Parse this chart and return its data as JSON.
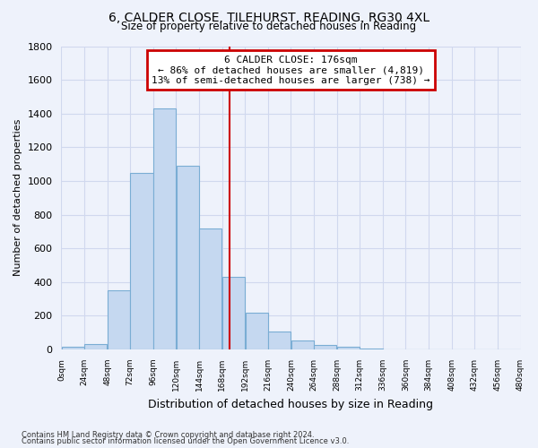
{
  "title": "6, CALDER CLOSE, TILEHURST, READING, RG30 4XL",
  "subtitle": "Size of property relative to detached houses in Reading",
  "xlabel": "Distribution of detached houses by size in Reading",
  "ylabel": "Number of detached properties",
  "bar_color": "#c5d8f0",
  "bar_edge_color": "#7aadd4",
  "bin_edges": [
    0,
    24,
    48,
    72,
    96,
    120,
    144,
    168,
    192,
    216,
    240,
    264,
    288,
    312,
    336,
    360,
    384,
    408,
    432,
    456,
    480
  ],
  "bar_heights": [
    15,
    30,
    350,
    1050,
    1430,
    1090,
    720,
    430,
    220,
    105,
    55,
    25,
    15,
    5,
    2,
    1,
    0,
    0,
    0,
    0
  ],
  "property_line_x": 176,
  "property_line_color": "#cc0000",
  "annotation_line1": "6 CALDER CLOSE: 176sqm",
  "annotation_line2": "← 86% of detached houses are smaller (4,819)",
  "annotation_line3": "13% of semi-detached houses are larger (738) →",
  "annotation_box_color": "#ffffff",
  "annotation_box_edge_color": "#cc0000",
  "ylim": [
    0,
    1800
  ],
  "xlim": [
    0,
    480
  ],
  "tick_labels": [
    "0sqm",
    "24sqm",
    "48sqm",
    "72sqm",
    "96sqm",
    "120sqm",
    "144sqm",
    "168sqm",
    "192sqm",
    "216sqm",
    "240sqm",
    "264sqm",
    "288sqm",
    "312sqm",
    "336sqm",
    "360sqm",
    "384sqm",
    "408sqm",
    "432sqm",
    "456sqm",
    "480sqm"
  ],
  "footnote1": "Contains HM Land Registry data © Crown copyright and database right 2024.",
  "footnote2": "Contains public sector information licensed under the Open Government Licence v3.0.",
  "background_color": "#eef2fb",
  "grid_color": "#d0d8ee"
}
